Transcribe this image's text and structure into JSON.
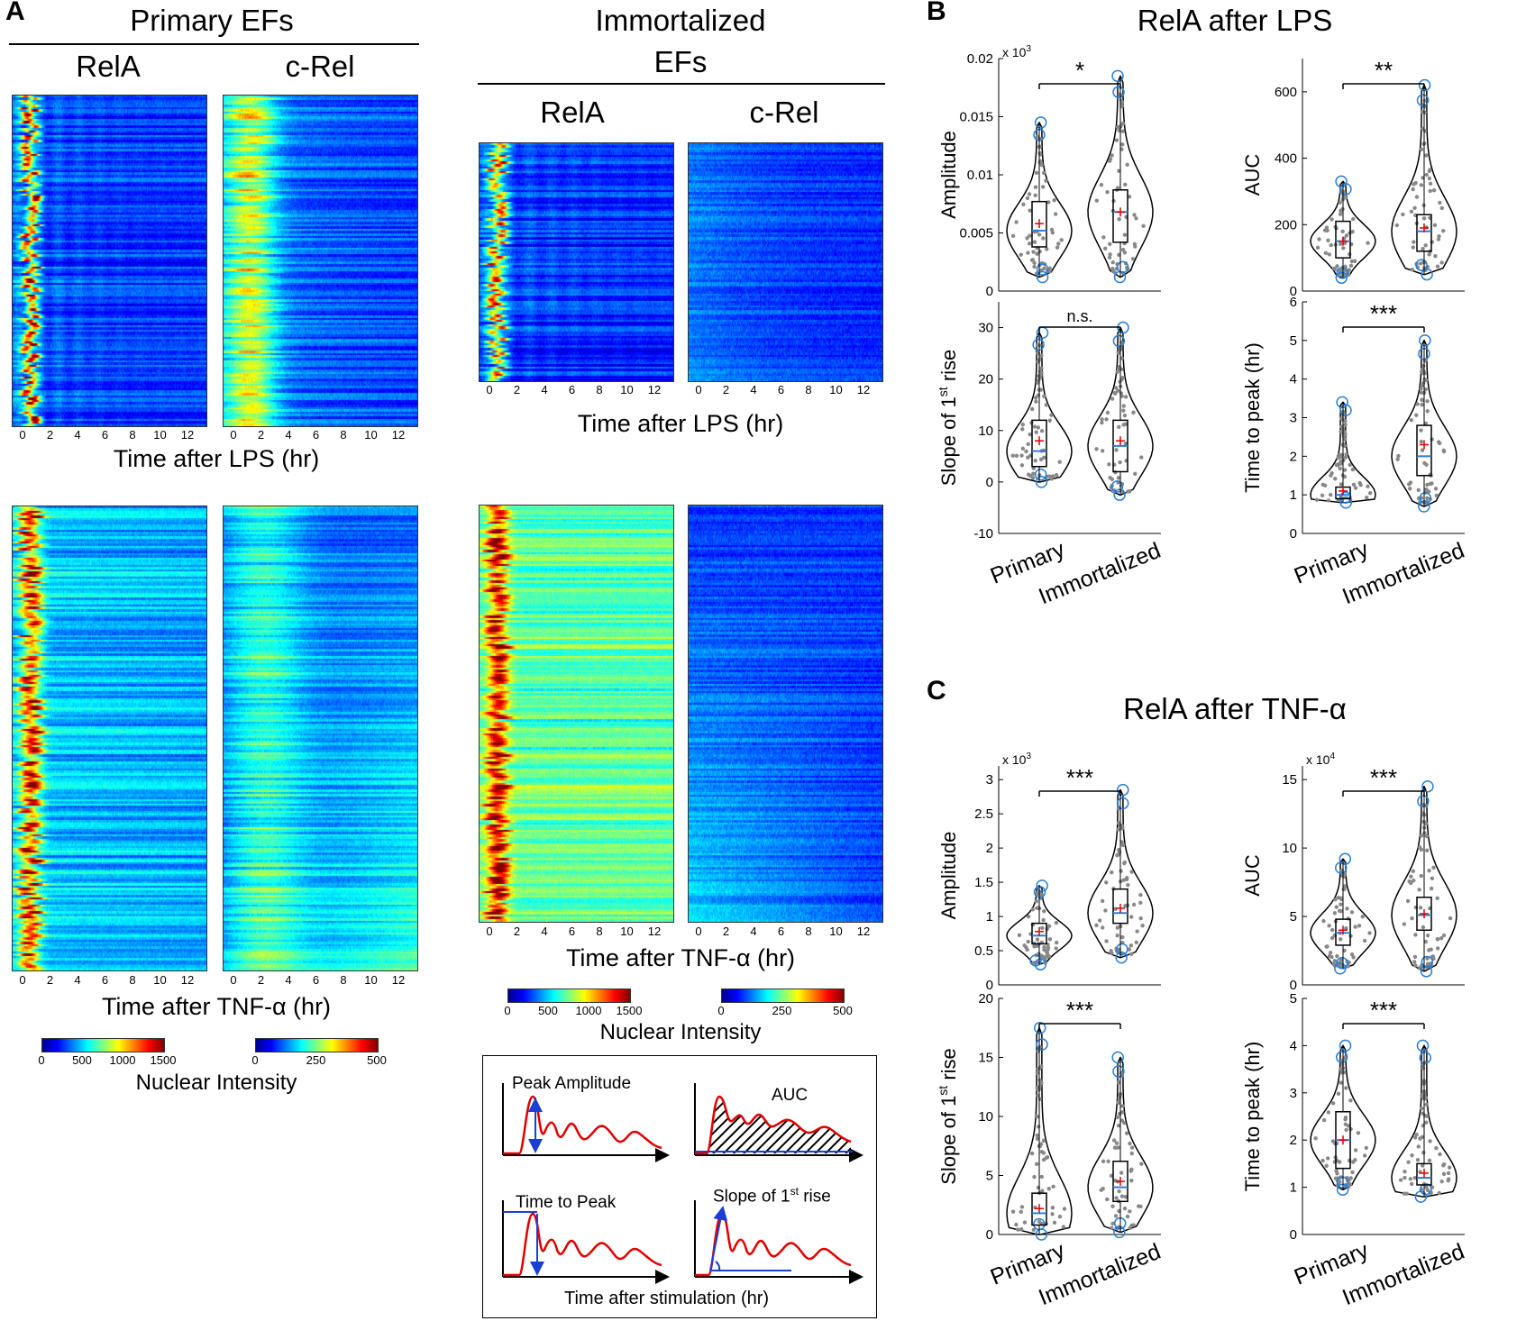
{
  "panels": {
    "a": "A",
    "b": "B",
    "c": "C"
  },
  "panel_a": {
    "primary_title": "Primary EFs",
    "immortalized_title_line1": "Immortalized",
    "immortalized_title_line2": "EFs",
    "col_relA": "RelA",
    "col_cRel": "c-Rel",
    "x_ticks": [
      "0",
      "2",
      "4",
      "6",
      "8",
      "10",
      "12"
    ],
    "xlabel_lps": "Time after LPS (hr)",
    "xlabel_tnf": "Time after TNF-α (hr)",
    "cbar_relA_ticks": [
      "0",
      "500",
      "1000",
      "1500"
    ],
    "cbar_cRel_ticks": [
      "0",
      "250",
      "500"
    ],
    "cbar_title": "Nuclear Intensity",
    "colors": {
      "low": "#00008f",
      "mid": "#00b4ff",
      "mid2": "#ffff00",
      "high": "#800000"
    }
  },
  "schematic": {
    "peak_amplitude": "Peak Amplitude",
    "auc": "AUC",
    "time_to_peak": "Time to Peak",
    "slope_prefix": "Slope of 1",
    "slope_sup": "st",
    "slope_suffix": " rise",
    "xlabel": "Time after stimulation (hr)",
    "colors": {
      "trace": "#e00000",
      "arrow": "#1a3fd6"
    }
  },
  "chart_data": [
    {
      "type": "violin",
      "panel": "B",
      "title": "RelA after LPS",
      "ylabel": "Amplitude",
      "exponent": "x 10",
      "exponent_sup": "3",
      "ylim": [
        0,
        0.02
      ],
      "yticks": [
        "0",
        "0.005",
        "0.01",
        "0.015",
        "0.02"
      ],
      "ytick_values": [
        0,
        0.005,
        0.01,
        0.015,
        0.02
      ],
      "categories": [
        "Primary",
        "Immortalized"
      ],
      "violin_range": [
        [
          0.0012,
          0.0145
        ],
        [
          0.0012,
          0.0185
        ]
      ],
      "median": [
        0.0052,
        0.0068
      ],
      "mean": [
        0.0058,
        0.0068
      ],
      "q1": [
        0.0038,
        0.0042
      ],
      "q3": [
        0.0077,
        0.0087
      ],
      "significance": "*"
    },
    {
      "type": "violin",
      "panel": "B",
      "title": "RelA after LPS",
      "ylabel": "AUC",
      "exponent": "",
      "exponent_sup": "",
      "ylim": [
        0,
        700
      ],
      "yticks": [
        "0",
        "200",
        "400",
        "600"
      ],
      "ytick_values": [
        0,
        200,
        400,
        600
      ],
      "categories": [
        "Primary",
        "Immortalized"
      ],
      "violin_range": [
        [
          40,
          330
        ],
        [
          50,
          620
        ]
      ],
      "median": [
        150,
        180
      ],
      "mean": [
        150,
        190
      ],
      "q1": [
        100,
        120
      ],
      "q3": [
        210,
        230
      ],
      "significance": "**"
    },
    {
      "type": "violin",
      "panel": "B",
      "title": "RelA after LPS",
      "ylabel": "Slope of 1st rise",
      "exponent": "",
      "exponent_sup": "",
      "ylim": [
        -10,
        35
      ],
      "yticks": [
        "-10",
        "0",
        "10",
        "20",
        "30"
      ],
      "ytick_values": [
        -10,
        0,
        10,
        20,
        30
      ],
      "categories": [
        "Primary",
        "Immortalized"
      ],
      "violin_range": [
        [
          0,
          29
        ],
        [
          -2.5,
          30
        ]
      ],
      "median": [
        6,
        7
      ],
      "mean": [
        8,
        8
      ],
      "q1": [
        3,
        2
      ],
      "q3": [
        12,
        12
      ],
      "significance": "n.s."
    },
    {
      "type": "violin",
      "panel": "B",
      "title": "RelA after LPS",
      "ylabel": "Time to peak (hr)",
      "exponent": "",
      "exponent_sup": "",
      "ylim": [
        0,
        6
      ],
      "yticks": [
        "0",
        "1",
        "2",
        "3",
        "4",
        "5",
        "6"
      ],
      "ytick_values": [
        0,
        1,
        2,
        3,
        4,
        5,
        6
      ],
      "categories": [
        "Primary",
        "Immortalized"
      ],
      "violin_range": [
        [
          0.8,
          3.4
        ],
        [
          0.7,
          5
        ]
      ],
      "median": [
        1.0,
        2.0
      ],
      "mean": [
        1.1,
        2.3
      ],
      "q1": [
        0.9,
        1.5
      ],
      "q3": [
        1.2,
        2.8
      ],
      "significance": "***"
    },
    {
      "type": "violin",
      "panel": "C",
      "title": "RelA after TNF-α",
      "ylabel": "Amplitude",
      "exponent": "x 10",
      "exponent_sup": "3",
      "ylim": [
        0,
        3.2
      ],
      "yticks": [
        "0",
        "0.5",
        "1",
        "1.5",
        "2",
        "2.5",
        "3"
      ],
      "ytick_values": [
        0,
        0.5,
        1,
        1.5,
        2,
        2.5,
        3
      ],
      "categories": [
        "Primary",
        "Immortalized"
      ],
      "violin_range": [
        [
          0.3,
          1.45
        ],
        [
          0.4,
          2.85
        ]
      ],
      "median": [
        0.72,
        1.05
      ],
      "mean": [
        0.78,
        1.12
      ],
      "q1": [
        0.6,
        0.9
      ],
      "q3": [
        0.9,
        1.4
      ],
      "significance": "***"
    },
    {
      "type": "violin",
      "panel": "C",
      "title": "RelA after TNF-α",
      "ylabel": "AUC",
      "exponent": "x 10",
      "exponent_sup": "4",
      "ylim": [
        0,
        16
      ],
      "yticks": [
        "0",
        "5",
        "10",
        "15"
      ],
      "ytick_values": [
        0,
        5,
        10,
        15
      ],
      "categories": [
        "Primary",
        "Immortalized"
      ],
      "violin_range": [
        [
          1.2,
          9.2
        ],
        [
          1,
          14.5
        ]
      ],
      "median": [
        3.8,
        5.1
      ],
      "mean": [
        4,
        5.2
      ],
      "q1": [
        2.9,
        4
      ],
      "q3": [
        4.8,
        6.4
      ],
      "significance": "***"
    },
    {
      "type": "violin",
      "panel": "C",
      "title": "RelA after TNF-α",
      "ylabel": "Slope of 1st rise",
      "exponent": "",
      "exponent_sup": "",
      "ylim": [
        0,
        20
      ],
      "yticks": [
        "0",
        "5",
        "10",
        "15",
        "20"
      ],
      "ytick_values": [
        0,
        5,
        10,
        15,
        20
      ],
      "categories": [
        "Primary",
        "Immortalized"
      ],
      "violin_range": [
        [
          0,
          17.5
        ],
        [
          0.2,
          15
        ]
      ],
      "median": [
        1.8,
        4
      ],
      "mean": [
        2.2,
        4.5
      ],
      "q1": [
        0.8,
        2.8
      ],
      "q3": [
        3.5,
        6.2
      ],
      "significance": "***"
    },
    {
      "type": "violin",
      "panel": "C",
      "title": "RelA after TNF-α",
      "ylabel": "Time to peak (hr)",
      "exponent": "",
      "exponent_sup": "",
      "ylim": [
        0,
        5
      ],
      "yticks": [
        "0",
        "1",
        "2",
        "3",
        "4",
        "5"
      ],
      "ytick_values": [
        0,
        1,
        2,
        3,
        4,
        5
      ],
      "categories": [
        "Primary",
        "Immortalized"
      ],
      "violin_range": [
        [
          0.95,
          4
        ],
        [
          0.8,
          4
        ]
      ],
      "median": [
        2,
        1.2
      ],
      "mean": [
        2,
        1.3
      ],
      "q1": [
        1.4,
        1.05
      ],
      "q3": [
        2.6,
        1.5
      ],
      "significance": "***"
    }
  ]
}
